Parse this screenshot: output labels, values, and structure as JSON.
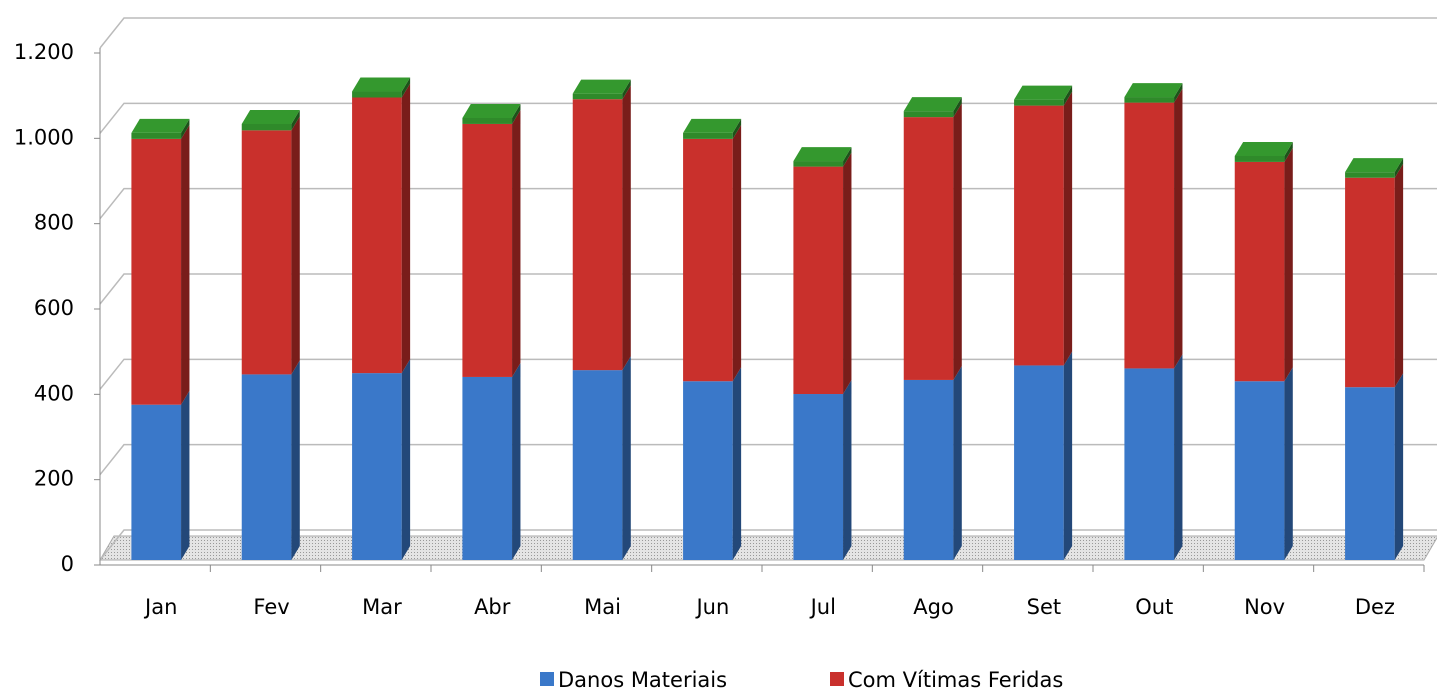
{
  "chart_data": {
    "type": "bar3d-stacked",
    "categories": [
      "Jan",
      "Fev",
      "Mar",
      "Abr",
      "Mai",
      "Jun",
      "Jul",
      "Ago",
      "Set",
      "Out",
      "Nov",
      "Dez"
    ],
    "series": [
      {
        "name": "Danos Materiais",
        "color": "#3a78c9",
        "values": [
          364,
          435,
          438,
          429,
          445,
          419,
          389,
          422,
          456,
          449,
          419,
          405
        ]
      },
      {
        "name": "Com Vítimas Feridas",
        "color": "#c9302c",
        "values": [
          623,
          572,
          646,
          593,
          635,
          568,
          533,
          616,
          609,
          623,
          514,
          491
        ]
      },
      {
        "color": "#2f8a2a",
        "values": [
          14,
          15,
          14,
          14,
          13,
          14,
          13,
          14,
          14,
          13,
          14,
          13
        ]
      }
    ],
    "ylim": [
      0,
      1200
    ],
    "yticks": [
      0,
      200,
      400,
      600,
      800,
      {
        "value": 1000,
        "label": "1.000"
      },
      {
        "value": 1200,
        "label": "1.200"
      }
    ],
    "grid": true,
    "legend": "bottom"
  }
}
